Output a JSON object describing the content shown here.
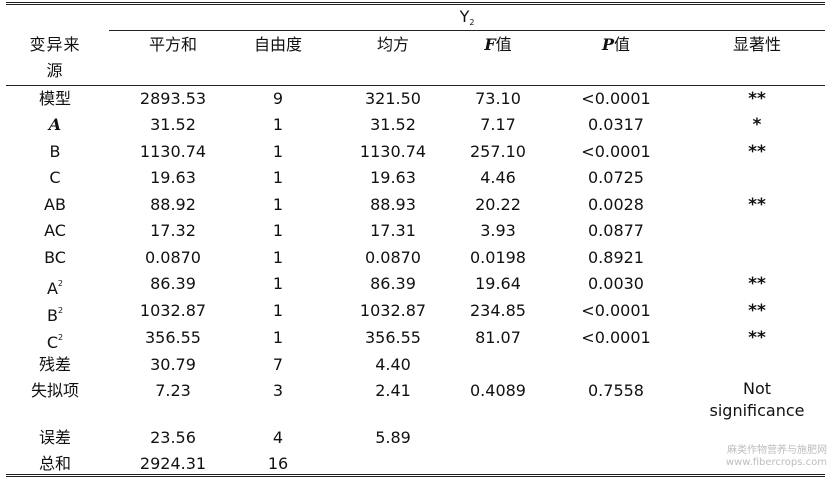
{
  "table": {
    "group_title": "Y",
    "group_sub": "2",
    "headers": {
      "source_line1": "变异来",
      "source_line2": "源",
      "ss": "平方和",
      "df": "自由度",
      "ms": "均方",
      "f_letter": "F",
      "f_suffix": "值",
      "p_letter": "P",
      "p_suffix": "值",
      "sig": "显著性"
    },
    "rows": [
      {
        "source": "模型",
        "ss": "2893.53",
        "df": "9",
        "ms": "321.50",
        "f": "73.10",
        "p": "<0.0001",
        "sig": "**"
      },
      {
        "source": "A",
        "ss": "31.52",
        "df": "1",
        "ms": "31.52",
        "f": "7.17",
        "p": "0.0317",
        "sig": "*"
      },
      {
        "source": "B",
        "ss": "1130.74",
        "df": "1",
        "ms": "1130.74",
        "f": "257.10",
        "p": "<0.0001",
        "sig": "**"
      },
      {
        "source": "C",
        "ss": "19.63",
        "df": "1",
        "ms": "19.63",
        "f": "4.46",
        "p": "0.0725",
        "sig": ""
      },
      {
        "source": "AB",
        "ss": "88.92",
        "df": "1",
        "ms": "88.93",
        "f": "20.22",
        "p": "0.0028",
        "sig": "**"
      },
      {
        "source": "AC",
        "ss": "17.32",
        "df": "1",
        "ms": "17.31",
        "f": "3.93",
        "p": "0.0877",
        "sig": ""
      },
      {
        "source": "BC",
        "ss": "0.0870",
        "df": "1",
        "ms": "0.0870",
        "f": "0.0198",
        "p": "0.8921",
        "sig": ""
      },
      {
        "source": "A",
        "source_sup": "2",
        "ss": "86.39",
        "df": "1",
        "ms": "86.39",
        "f": "19.64",
        "p": "0.0030",
        "sig": "**"
      },
      {
        "source": "B",
        "source_sup": "2",
        "ss": "1032.87",
        "df": "1",
        "ms": "1032.87",
        "f": "234.85",
        "p": "<0.0001",
        "sig": "**"
      },
      {
        "source": "C",
        "source_sup": "2",
        "ss": "356.55",
        "df": "1",
        "ms": "356.55",
        "f": "81.07",
        "p": "<0.0001",
        "sig": "**"
      },
      {
        "source": "残差",
        "ss": "30.79",
        "df": "7",
        "ms": "4.40",
        "f": "",
        "p": "",
        "sig": ""
      },
      {
        "source": "失拟项",
        "ss": "7.23",
        "df": "3",
        "ms": "2.41",
        "f": "0.4089",
        "p": "0.7558",
        "sig": "Not",
        "sig2": "significance"
      },
      {
        "source": "误差",
        "ss": "23.56",
        "df": "4",
        "ms": "5.89",
        "f": "",
        "p": "",
        "sig": ""
      },
      {
        "source": "总和",
        "ss": "2924.31",
        "df": "16",
        "ms": "",
        "f": "",
        "p": "",
        "sig": ""
      }
    ]
  },
  "watermark": {
    "line1": "麻类作物营养与施肥网",
    "line2": "www.fibercrops.com"
  }
}
